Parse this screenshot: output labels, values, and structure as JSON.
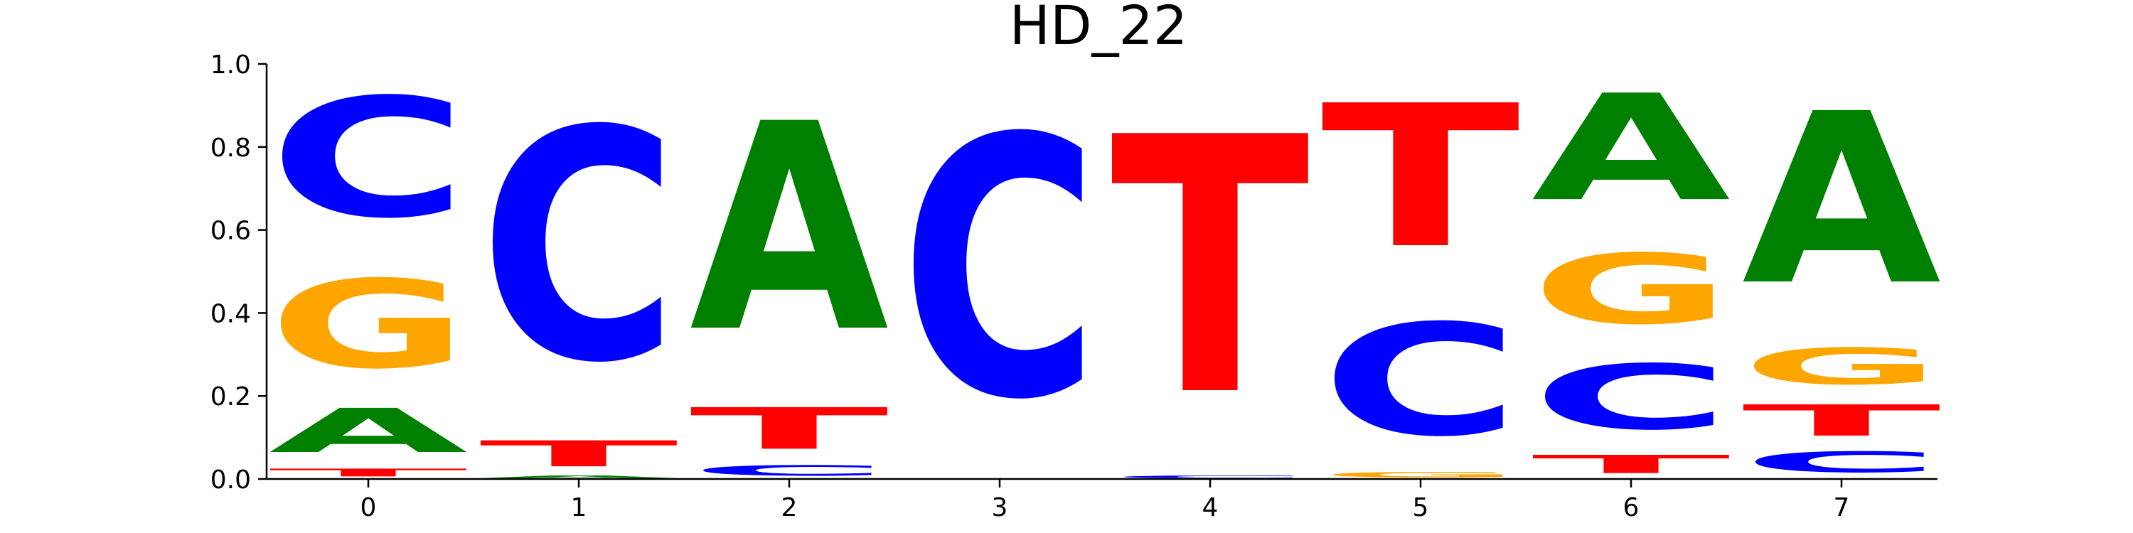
{
  "chart_data": {
    "type": "sequence-logo",
    "title": "HD_22",
    "xlabel": "",
    "ylabel": "",
    "ylim": [
      0,
      1
    ],
    "yticks": [
      "0.0",
      "0.2",
      "0.4",
      "0.6",
      "0.8",
      "1.0"
    ],
    "xticks": [
      "0",
      "1",
      "2",
      "3",
      "4",
      "5",
      "6",
      "7"
    ],
    "colors": {
      "A": "#008000",
      "C": "#0000ff",
      "G": "#ffa500",
      "T": "#ff0000"
    },
    "positions": [
      {
        "x": "0",
        "letters": [
          {
            "base": "T",
            "value": 0.03
          },
          {
            "base": "A",
            "value": 0.17
          },
          {
            "base": "G",
            "value": 0.34
          },
          {
            "base": "C",
            "value": 0.46
          }
        ]
      },
      {
        "x": "1",
        "letters": [
          {
            "base": "A",
            "value": 0.01
          },
          {
            "base": "T",
            "value": 0.1
          },
          {
            "base": "C",
            "value": 0.89
          }
        ]
      },
      {
        "x": "2",
        "letters": [
          {
            "base": "C",
            "value": 0.04
          },
          {
            "base": "T",
            "value": 0.16
          },
          {
            "base": "A",
            "value": 0.8
          }
        ]
      },
      {
        "x": "3",
        "letters": [
          {
            "base": "C",
            "value": 1.0
          }
        ]
      },
      {
        "x": "4",
        "letters": [
          {
            "base": "C",
            "value": 0.01
          },
          {
            "base": "T",
            "value": 0.99
          }
        ]
      },
      {
        "x": "5",
        "letters": [
          {
            "base": "G",
            "value": 0.02
          },
          {
            "base": "C",
            "value": 0.43
          },
          {
            "base": "T",
            "value": 0.55
          }
        ]
      },
      {
        "x": "6",
        "letters": [
          {
            "base": "T",
            "value": 0.07
          },
          {
            "base": "C",
            "value": 0.25
          },
          {
            "base": "G",
            "value": 0.27
          },
          {
            "base": "A",
            "value": 0.41
          }
        ]
      },
      {
        "x": "7",
        "letters": [
          {
            "base": "C",
            "value": 0.08
          },
          {
            "base": "T",
            "value": 0.12
          },
          {
            "base": "G",
            "value": 0.14
          },
          {
            "base": "A",
            "value": 0.66
          }
        ]
      }
    ]
  }
}
